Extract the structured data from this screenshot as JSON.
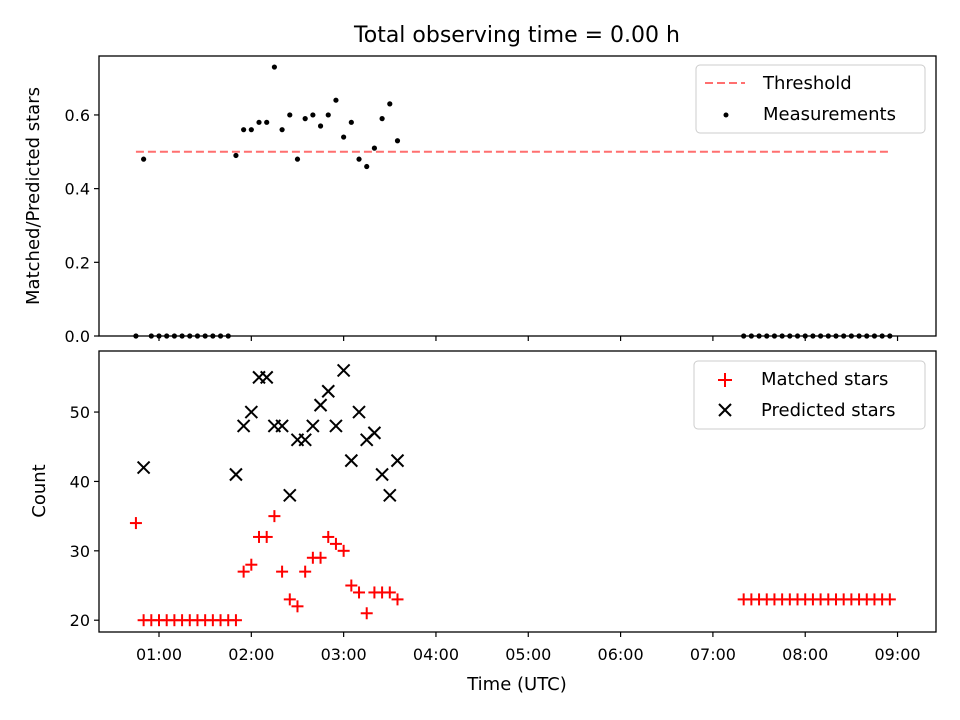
{
  "chart_data": [
    {
      "type": "scatter",
      "title": "Total observing time = 0.00 h",
      "ylabel": "Matched/Predicted stars",
      "xlabel": "",
      "xlim": [
        "00:21",
        "09:25"
      ],
      "ylim": [
        0,
        0.76
      ],
      "yticks": [
        "0.0",
        "0.2",
        "0.4",
        "0.6"
      ],
      "legend": "top-right",
      "threshold": {
        "name": "Threshold",
        "value": 0.5,
        "x_start": "00:45",
        "x_end": "08:55",
        "color": "#ff6f6f",
        "style": "dashed"
      },
      "series": [
        {
          "name": "Measurements",
          "color": "#000000",
          "marker": "dot",
          "x": [
            "00:45",
            "00:50",
            "00:55",
            "01:00",
            "01:05",
            "01:10",
            "01:15",
            "01:20",
            "01:25",
            "01:30",
            "01:35",
            "01:40",
            "01:45",
            "01:50",
            "01:55",
            "02:00",
            "02:05",
            "02:10",
            "02:15",
            "02:20",
            "02:25",
            "02:30",
            "02:35",
            "02:40",
            "02:45",
            "02:50",
            "02:55",
            "03:00",
            "03:05",
            "03:10",
            "03:15",
            "03:20",
            "03:25",
            "03:30",
            "03:35",
            "07:20",
            "07:25",
            "07:30",
            "07:35",
            "07:40",
            "07:45",
            "07:50",
            "07:55",
            "08:00",
            "08:05",
            "08:10",
            "08:15",
            "08:20",
            "08:25",
            "08:30",
            "08:35",
            "08:40",
            "08:45",
            "08:50",
            "08:55"
          ],
          "y": [
            0.0,
            0.48,
            0.0,
            0.0,
            0.0,
            0.0,
            0.0,
            0.0,
            0.0,
            0.0,
            0.0,
            0.0,
            0.0,
            0.49,
            0.56,
            0.56,
            0.58,
            0.58,
            0.73,
            0.56,
            0.6,
            0.48,
            0.59,
            0.6,
            0.57,
            0.6,
            0.64,
            0.54,
            0.58,
            0.48,
            0.46,
            0.51,
            0.59,
            0.63,
            0.53,
            0.0,
            0.0,
            0.0,
            0.0,
            0.0,
            0.0,
            0.0,
            0.0,
            0.0,
            0.0,
            0.0,
            0.0,
            0.0,
            0.0,
            0.0,
            0.0,
            0.0,
            0.0,
            0.0,
            0.0
          ]
        }
      ]
    },
    {
      "type": "scatter",
      "title": "",
      "xlabel": "Time (UTC)",
      "ylabel": "Count",
      "xlim": [
        "00:21",
        "09:25"
      ],
      "ylim": [
        18.3,
        58.8
      ],
      "xticks": [
        "01:00",
        "02:00",
        "03:00",
        "04:00",
        "05:00",
        "06:00",
        "07:00",
        "08:00",
        "09:00"
      ],
      "yticks": [
        "20",
        "30",
        "40",
        "50"
      ],
      "legend": "top-right",
      "series": [
        {
          "name": "Matched stars",
          "color": "#ff0000",
          "marker": "plus",
          "x": [
            "00:45",
            "00:50",
            "00:55",
            "01:00",
            "01:05",
            "01:10",
            "01:15",
            "01:20",
            "01:25",
            "01:30",
            "01:35",
            "01:40",
            "01:45",
            "01:50",
            "01:55",
            "02:00",
            "02:05",
            "02:10",
            "02:15",
            "02:20",
            "02:25",
            "02:30",
            "02:35",
            "02:40",
            "02:45",
            "02:50",
            "02:55",
            "03:00",
            "03:05",
            "03:10",
            "03:15",
            "03:20",
            "03:25",
            "03:30",
            "03:35",
            "07:20",
            "07:25",
            "07:30",
            "07:35",
            "07:40",
            "07:45",
            "07:50",
            "07:55",
            "08:00",
            "08:05",
            "08:10",
            "08:15",
            "08:20",
            "08:25",
            "08:30",
            "08:35",
            "08:40",
            "08:45",
            "08:50",
            "08:55"
          ],
          "y": [
            34,
            20,
            20,
            20,
            20,
            20,
            20,
            20,
            20,
            20,
            20,
            20,
            20,
            20,
            27,
            28,
            32,
            32,
            35,
            27,
            23,
            22,
            27,
            29,
            29,
            32,
            31,
            30,
            25,
            24,
            21,
            24,
            24,
            24,
            23,
            23,
            23,
            23,
            23,
            23,
            23,
            23,
            23,
            23,
            23,
            23,
            23,
            23,
            23,
            23,
            23,
            23,
            23,
            23,
            23
          ]
        },
        {
          "name": "Predicted stars",
          "color": "#000000",
          "marker": "x",
          "x": [
            "00:50",
            "01:50",
            "01:55",
            "02:00",
            "02:05",
            "02:10",
            "02:15",
            "02:20",
            "02:25",
            "02:30",
            "02:35",
            "02:40",
            "02:45",
            "02:50",
            "02:55",
            "03:00",
            "03:05",
            "03:10",
            "03:15",
            "03:20",
            "03:25",
            "03:30",
            "03:35"
          ],
          "y": [
            42,
            41,
            48,
            50,
            55,
            55,
            48,
            48,
            38,
            46,
            46,
            48,
            51,
            53,
            48,
            56,
            43,
            50,
            46,
            47,
            41,
            38,
            43
          ]
        }
      ]
    }
  ]
}
